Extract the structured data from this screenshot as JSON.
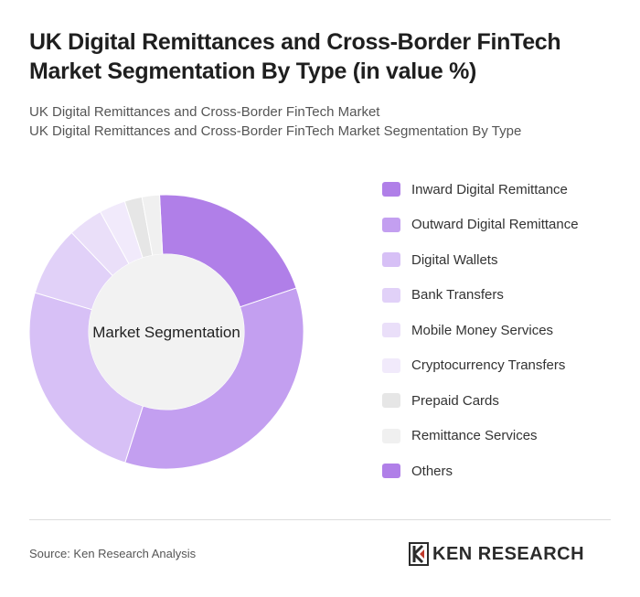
{
  "header": {
    "title": "UK Digital Remittances and Cross-Border FinTech Market Segmentation By Type (in value %)",
    "subtitle_1": "UK Digital Remittances and Cross-Border FinTech Market",
    "subtitle_2": "UK Digital Remittances and Cross-Border FinTech Market Segmentation By Type"
  },
  "chart_data": {
    "type": "pie",
    "style": "donut",
    "center_label": "Market Segmentation",
    "categories": [
      "Inward Digital Remittance",
      "Outward Digital Remittance",
      "Digital Wallets",
      "Bank Transfers",
      "Mobile Money Services",
      "Cryptocurrency Transfers",
      "Prepaid Cards",
      "Remittance Services",
      "Others"
    ],
    "values": [
      20,
      34,
      24,
      8,
      4,
      3,
      2,
      2,
      0
    ],
    "colors": [
      "#b07fe8",
      "#c39ff0",
      "#d7c0f6",
      "#e1d1f8",
      "#eadff9",
      "#f1eafb",
      "#e6e6e6",
      "#f0f0f0",
      "#b07fe8"
    ],
    "legend_position": "right"
  },
  "footer": {
    "source": "Source: Ken Research Analysis",
    "logo_text": "KEN RESEARCH"
  }
}
